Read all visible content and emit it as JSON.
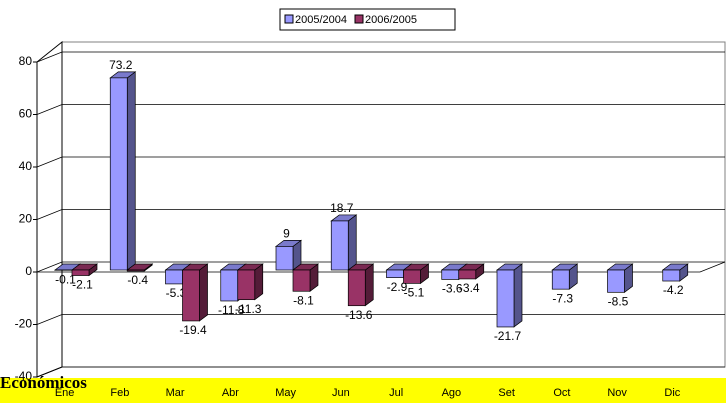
{
  "chart_data": {
    "type": "bar3d",
    "categories": [
      "Ene",
      "Feb",
      "Mar",
      "Abr",
      "May",
      "Jun",
      "Jul",
      "Ago",
      "Set",
      "Oct",
      "Nov",
      "Dic"
    ],
    "series": [
      {
        "name": "2005/2004",
        "color": "#9999ff",
        "values": [
          -0.1,
          73.2,
          -5.3,
          -11.8,
          9,
          18.7,
          -2.9,
          -3.6,
          -21.7,
          -7.3,
          -8.5,
          -4.2
        ]
      },
      {
        "name": "2006/2005",
        "color": "#993366",
        "values": [
          -2.1,
          -0.4,
          -19.4,
          -11.3,
          -8.1,
          -13.6,
          -5.1,
          -3.4,
          null,
          null,
          null,
          null
        ]
      }
    ],
    "ylim": [
      -40,
      80
    ],
    "yticks": [
      -40,
      -20,
      0,
      20,
      40,
      60,
      80
    ],
    "grid": true,
    "legend": "top",
    "annotation": "Económicos"
  }
}
